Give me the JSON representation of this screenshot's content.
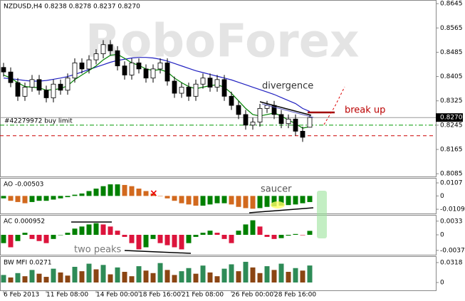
{
  "chart_data": [
    {
      "type": "candlestick",
      "title": "NZDUSD,H4  0.8238 0.8278 0.8237 0.8270",
      "watermark": "RoboForex",
      "categories": [
        "6 Feb 2013",
        null,
        null,
        null,
        null,
        null,
        "11 Feb 08:00",
        null,
        null,
        null,
        null,
        null,
        null,
        "14 Feb 00:00",
        null,
        null,
        null,
        null,
        null,
        "18 Feb 16:00",
        null,
        null,
        null,
        null,
        null,
        "21 Feb 08:00",
        null,
        null,
        null,
        null,
        null,
        null,
        "26 Feb 00:00",
        null,
        null,
        null,
        null,
        null,
        "28 Feb 16:00",
        null,
        null,
        null,
        null,
        null
      ],
      "open": [
        0.8435,
        0.842,
        0.8385,
        0.834,
        0.837,
        0.8395,
        0.836,
        0.8335,
        0.838,
        0.836,
        0.84,
        0.845,
        0.843,
        0.846,
        0.848,
        0.851,
        0.849,
        0.844,
        0.841,
        0.845,
        0.843,
        0.84,
        0.843,
        0.845,
        0.839,
        0.835,
        0.837,
        0.834,
        0.838,
        0.84,
        0.837,
        0.8395,
        0.834,
        0.831,
        0.828,
        0.8245,
        0.8255,
        0.83,
        0.831,
        0.828,
        0.825,
        0.8265,
        0.8225,
        0.8238
      ],
      "high": [
        0.845,
        0.8435,
        0.84,
        0.8385,
        0.841,
        0.841,
        0.8375,
        0.8395,
        0.8395,
        0.8415,
        0.8465,
        0.8465,
        0.8475,
        0.8495,
        0.8525,
        0.8525,
        0.8505,
        0.8455,
        0.8465,
        0.8465,
        0.8445,
        0.8445,
        0.8465,
        0.8465,
        0.8405,
        0.8385,
        0.8385,
        0.8395,
        0.8415,
        0.8415,
        0.841,
        0.841,
        0.8355,
        0.8325,
        0.8295,
        0.827,
        0.8315,
        0.8325,
        0.8325,
        0.8295,
        0.828,
        0.828,
        0.824,
        0.8278
      ],
      "low": [
        0.8405,
        0.837,
        0.8325,
        0.8325,
        0.8355,
        0.8345,
        0.832,
        0.832,
        0.8345,
        0.8345,
        0.8385,
        0.8415,
        0.8415,
        0.8445,
        0.8465,
        0.8475,
        0.8425,
        0.8395,
        0.8395,
        0.8415,
        0.8385,
        0.8385,
        0.8415,
        0.8375,
        0.8335,
        0.8335,
        0.8325,
        0.8325,
        0.8365,
        0.8355,
        0.8355,
        0.8325,
        0.8295,
        0.8265,
        0.823,
        0.823,
        0.824,
        0.8285,
        0.8265,
        0.8235,
        0.8235,
        0.821,
        0.819,
        0.8237
      ],
      "close": [
        0.842,
        0.8385,
        0.834,
        0.837,
        0.8395,
        0.836,
        0.8335,
        0.838,
        0.836,
        0.84,
        0.845,
        0.843,
        0.846,
        0.848,
        0.851,
        0.849,
        0.844,
        0.841,
        0.845,
        0.843,
        0.84,
        0.843,
        0.845,
        0.839,
        0.835,
        0.837,
        0.834,
        0.838,
        0.84,
        0.837,
        0.8395,
        0.834,
        0.831,
        0.828,
        0.8245,
        0.8255,
        0.83,
        0.831,
        0.828,
        0.825,
        0.8265,
        0.8225,
        0.8205,
        0.827
      ],
      "up_color": "#ffffff",
      "down_color": "#000000",
      "lines": [
        {
          "color": "#2020c0",
          "values": [
            0.84,
            0.8398,
            0.8395,
            0.8392,
            0.839,
            0.839,
            0.8392,
            0.8396,
            0.84,
            0.8405,
            0.8412,
            0.842,
            0.8428,
            0.8436,
            0.8444,
            0.8452,
            0.8458,
            0.8462,
            0.8466,
            0.8468,
            0.8468,
            0.8466,
            0.8462,
            0.8456,
            0.8448,
            0.844,
            0.8432,
            0.8424,
            0.8418,
            0.8412,
            0.8406,
            0.84,
            0.8394,
            0.8386,
            0.8378,
            0.837,
            0.8362,
            0.8354,
            0.8346,
            0.8336,
            0.8326,
            0.8316,
            0.83,
            0.829
          ]
        },
        {
          "color": "#008000",
          "values": [
            0.841,
            0.84,
            0.8385,
            0.8372,
            0.837,
            0.8368,
            0.836,
            0.8362,
            0.8365,
            0.8375,
            0.8395,
            0.841,
            0.8425,
            0.844,
            0.846,
            0.8475,
            0.8478,
            0.8465,
            0.845,
            0.8442,
            0.843,
            0.8425,
            0.8428,
            0.842,
            0.84,
            0.8385,
            0.8372,
            0.8365,
            0.837,
            0.8375,
            0.8378,
            0.837,
            0.835,
            0.8325,
            0.83,
            0.828,
            0.8275,
            0.828,
            0.8285,
            0.8275,
            0.8262,
            0.825,
            0.8235,
            0.824
          ]
        }
      ],
      "levels": [
        {
          "value": 0.8245,
          "color": "#009900",
          "label": "#42279972 buy limit"
        },
        {
          "value": 0.821,
          "color": "#cc0000"
        }
      ],
      "price_label": {
        "value": 0.827,
        "label": "0.8270"
      },
      "annotations": [
        "divergence",
        "break up"
      ],
      "ylim": [
        0.8076,
        0.8657
      ],
      "yticks": [
        0.8645,
        0.8565,
        0.8485,
        0.8405,
        0.8325,
        0.8245,
        0.8165,
        0.8085
      ]
    },
    {
      "type": "bar",
      "title": "AO -0.00503",
      "annotations": [
        "saucer"
      ],
      "up_color": "#008000",
      "down_color": "#d2691e",
      "values": [
        -0.002,
        -0.004,
        -0.005,
        -0.006,
        -0.005,
        -0.004,
        -0.004,
        -0.003,
        -0.002,
        -0.001,
        0.001,
        0.002,
        0.004,
        0.006,
        0.008,
        0.0095,
        0.0095,
        0.009,
        0.008,
        0.006,
        0.004,
        0.002,
        0.0,
        -0.002,
        -0.004,
        -0.006,
        -0.007,
        -0.008,
        -0.008,
        -0.007,
        -0.006,
        -0.006,
        -0.007,
        -0.009,
        -0.01,
        -0.0105,
        -0.01,
        -0.009,
        -0.0085,
        -0.008,
        -0.0075,
        -0.007,
        -0.006,
        -0.00503
      ],
      "ylim": [
        -0.0144,
        0.0148
      ],
      "yticks": [
        0.0107,
        0,
        -0.01093
      ]
    },
    {
      "type": "bar",
      "title": "AC 0.000952",
      "annotations": [
        "two peaks"
      ],
      "up_color": "#008000",
      "down_color": "#dc143c",
      "values": [
        -0.002,
        -0.003,
        -0.0015,
        0.0005,
        -0.001,
        -0.0015,
        -0.002,
        -0.001,
        0.0,
        0.0005,
        0.0015,
        0.002,
        0.0025,
        0.0028,
        0.0025,
        0.002,
        0.001,
        -0.0005,
        -0.002,
        -0.0035,
        -0.003,
        -0.001,
        -0.002,
        -0.0025,
        -0.003,
        -0.0035,
        -0.002,
        -0.0005,
        0.0005,
        0.001,
        0.0005,
        -0.001,
        -0.002,
        0.001,
        0.0025,
        0.0035,
        0.002,
        -0.0005,
        -0.001,
        -0.0008,
        -0.0002,
        0.0002,
        -0.0001,
        0.000952
      ],
      "ylim": [
        -0.0048,
        0.0048
      ],
      "yticks": [
        0.0033,
        0,
        -0.00375
      ]
    },
    {
      "type": "bar",
      "title": "BW MFI 0.0271",
      "up_color": "#2e8b57",
      "down_color": "#8b4513",
      "values": [
        0.012,
        0.008,
        0.015,
        0.01,
        0.02,
        0.014,
        0.009,
        0.022,
        0.016,
        0.011,
        0.025,
        0.018,
        0.03,
        0.021,
        0.028,
        0.013,
        0.024,
        0.017,
        0.01,
        0.026,
        0.019,
        0.015,
        0.031,
        0.02,
        0.012,
        0.018,
        0.023,
        0.014,
        0.027,
        0.016,
        0.01,
        0.022,
        0.029,
        0.018,
        0.033,
        0.024,
        0.015,
        0.026,
        0.02,
        0.03,
        0.017,
        0.023,
        0.019,
        0.0271
      ],
      "ylim": [
        -0.0125,
        0.042
      ],
      "yticks": [
        0.0318,
        0
      ]
    }
  ]
}
